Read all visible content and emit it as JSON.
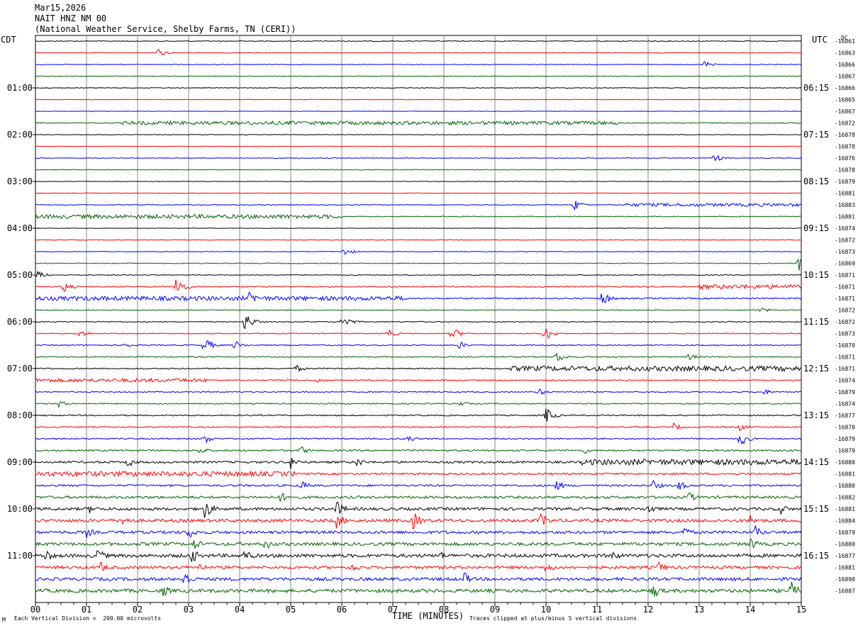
{
  "header": {
    "date": "Mar15,2026",
    "station": "NAIT HNZ NM 00",
    "agency": "(National Weather Service, Shelby Farms, TN (CERI))"
  },
  "axis": {
    "left_zone": "CDT",
    "right_zone": "UTC",
    "dc_label": "DC",
    "xlabel": "TIME (MINUTES)",
    "left_note": "Each Vertical Division =  200.00 microvolts",
    "right_note": "Traces clipped at plus/minus 5 vertical divisions",
    "corner_mark": "M"
  },
  "chart_data": {
    "type": "line",
    "title": "NAIT HNZ NM 00",
    "xlabel": "TIME (MINUTES)",
    "xlim": [
      0,
      15
    ],
    "x_ticks": [
      "00",
      "01",
      "02",
      "03",
      "04",
      "05",
      "06",
      "07",
      "08",
      "09",
      "10",
      "11",
      "12",
      "13",
      "14",
      "15"
    ],
    "grid": true,
    "trace_colors": [
      "#000000",
      "#ff0000",
      "#0000ff",
      "#006400"
    ],
    "left_times": [
      "01:00",
      "02:00",
      "03:00",
      "04:00",
      "05:00",
      "06:00",
      "07:00",
      "08:00",
      "09:00",
      "10:00",
      "11:00"
    ],
    "right_times": [
      "06:15",
      "07:15",
      "08:15",
      "09:15",
      "10:15",
      "11:15",
      "12:15",
      "13:15",
      "14:15",
      "15:15",
      "16:15"
    ],
    "dc_offsets": [
      "-16861",
      "-16863",
      "-16866",
      "-16867",
      "-16866",
      "-16865",
      "-16867",
      "-16872",
      "-16878",
      "-16878",
      "-16876",
      "-16878",
      "-16879",
      "-16881",
      "-16883",
      "-16881",
      "-16874",
      "-16872",
      "-16873",
      "-16869",
      "-16871",
      "-16871",
      "-16871",
      "-16872",
      "-16872",
      "-16873",
      "-16870",
      "-16871",
      "-16871",
      "-16874",
      "-16879",
      "-16874",
      "-16877",
      "-16878",
      "-16879",
      "-16879",
      "-16880",
      "-16881",
      "-16880",
      "-16882",
      "-16881",
      "-16884",
      "-16879",
      "-16880",
      "-16877",
      "-16881",
      "-16890",
      "-16887"
    ],
    "base_noise": [
      0.6,
      0.5,
      0.5,
      0.5,
      0.5,
      0.4,
      0.4,
      0.7,
      0.4,
      0.4,
      0.5,
      0.5,
      0.4,
      0.4,
      0.6,
      0.6,
      0.4,
      0.5,
      0.5,
      0.6,
      0.6,
      0.9,
      1.0,
      0.6,
      0.7,
      0.7,
      0.8,
      0.8,
      0.9,
      0.9,
      0.8,
      0.8,
      0.9,
      0.9,
      1.0,
      1.2,
      1.5,
      1.3,
      1.4,
      1.8,
      2.0,
      2.2,
      2.0,
      2.2,
      2.4,
      2.0,
      2.2,
      2.4
    ],
    "noisy_spans": [
      {
        "row": 7,
        "x0": 1.7,
        "x1": 11.4,
        "amp": 2.5
      },
      {
        "row": 14,
        "x0": 11.5,
        "x1": 15,
        "amp": 2.2
      },
      {
        "row": 15,
        "x0": 0,
        "x1": 6.0,
        "amp": 2.8
      },
      {
        "row": 21,
        "x0": 13.0,
        "x1": 15,
        "amp": 3.0
      },
      {
        "row": 22,
        "x0": 0,
        "x1": 7.3,
        "amp": 3.0
      },
      {
        "row": 28,
        "x0": 9.3,
        "x1": 15,
        "amp": 3.5
      },
      {
        "row": 29,
        "x0": 0,
        "x1": 3.4,
        "amp": 2.5
      },
      {
        "row": 36,
        "x0": 10.7,
        "x1": 15,
        "amp": 4.0
      },
      {
        "row": 37,
        "x0": 0,
        "x1": 5.1,
        "amp": 3.5
      }
    ],
    "events": [
      {
        "row": 1,
        "x": 2.4,
        "amp": 6
      },
      {
        "row": 2,
        "x": 13.1,
        "amp": 5
      },
      {
        "row": 10,
        "x": 13.3,
        "amp": 7
      },
      {
        "row": 14,
        "x": 10.55,
        "amp": 9
      },
      {
        "row": 18,
        "x": 6.05,
        "amp": 7
      },
      {
        "row": 19,
        "x": 14.95,
        "amp": 12
      },
      {
        "row": 20,
        "x": 0.05,
        "amp": 6
      },
      {
        "row": 21,
        "x": 0.55,
        "amp": 8
      },
      {
        "row": 21,
        "x": 2.75,
        "amp": 16
      },
      {
        "row": 22,
        "x": 4.2,
        "amp": 12
      },
      {
        "row": 22,
        "x": 11.1,
        "amp": 12
      },
      {
        "row": 23,
        "x": 14.2,
        "amp": 5
      },
      {
        "row": 24,
        "x": 4.1,
        "amp": 14
      },
      {
        "row": 24,
        "x": 6.0,
        "amp": 12
      },
      {
        "row": 25,
        "x": 0.85,
        "amp": 7
      },
      {
        "row": 25,
        "x": 6.9,
        "amp": 7
      },
      {
        "row": 25,
        "x": 8.15,
        "amp": 10
      },
      {
        "row": 25,
        "x": 9.95,
        "amp": 14
      },
      {
        "row": 26,
        "x": 1.7,
        "amp": 6
      },
      {
        "row": 26,
        "x": 3.3,
        "amp": 12
      },
      {
        "row": 26,
        "x": 3.9,
        "amp": 7
      },
      {
        "row": 26,
        "x": 8.3,
        "amp": 6
      },
      {
        "row": 27,
        "x": 10.2,
        "amp": 9
      },
      {
        "row": 27,
        "x": 12.8,
        "amp": 5
      },
      {
        "row": 28,
        "x": 5.1,
        "amp": 6
      },
      {
        "row": 29,
        "x": 5.5,
        "amp": 5
      },
      {
        "row": 30,
        "x": 9.85,
        "amp": 6
      },
      {
        "row": 30,
        "x": 14.25,
        "amp": 5
      },
      {
        "row": 31,
        "x": 0.45,
        "amp": 6
      },
      {
        "row": 31,
        "x": 8.3,
        "amp": 5
      },
      {
        "row": 32,
        "x": 10.0,
        "amp": 12
      },
      {
        "row": 33,
        "x": 12.5,
        "amp": 6
      },
      {
        "row": 33,
        "x": 13.8,
        "amp": 6
      },
      {
        "row": 34,
        "x": 3.3,
        "amp": 8
      },
      {
        "row": 34,
        "x": 7.3,
        "amp": 6
      },
      {
        "row": 34,
        "x": 13.8,
        "amp": 12
      },
      {
        "row": 35,
        "x": 3.2,
        "amp": 7
      },
      {
        "row": 35,
        "x": 5.2,
        "amp": 7
      },
      {
        "row": 35,
        "x": 10.75,
        "amp": 5
      },
      {
        "row": 36,
        "x": 1.8,
        "amp": 8
      },
      {
        "row": 36,
        "x": 5.0,
        "amp": 10
      },
      {
        "row": 36,
        "x": 6.3,
        "amp": 7
      },
      {
        "row": 38,
        "x": 5.2,
        "amp": 8
      },
      {
        "row": 38,
        "x": 10.2,
        "amp": 8
      },
      {
        "row": 38,
        "x": 12.1,
        "amp": 8
      },
      {
        "row": 38,
        "x": 12.6,
        "amp": 8
      },
      {
        "row": 39,
        "x": 4.8,
        "amp": 8
      },
      {
        "row": 39,
        "x": 12.8,
        "amp": 8
      },
      {
        "row": 40,
        "x": 1.05,
        "amp": 7
      },
      {
        "row": 40,
        "x": 3.3,
        "amp": 16
      },
      {
        "row": 40,
        "x": 5.9,
        "amp": 12
      },
      {
        "row": 40,
        "x": 12.0,
        "amp": 9
      },
      {
        "row": 40,
        "x": 14.6,
        "amp": 8
      },
      {
        "row": 41,
        "x": 1.7,
        "amp": 10
      },
      {
        "row": 41,
        "x": 5.9,
        "amp": 12
      },
      {
        "row": 41,
        "x": 7.4,
        "amp": 14
      },
      {
        "row": 41,
        "x": 9.9,
        "amp": 12
      },
      {
        "row": 41,
        "x": 14.0,
        "amp": 9
      },
      {
        "row": 42,
        "x": 1.0,
        "amp": 8
      },
      {
        "row": 42,
        "x": 3.0,
        "amp": 10
      },
      {
        "row": 42,
        "x": 12.7,
        "amp": 9
      },
      {
        "row": 42,
        "x": 14.1,
        "amp": 10
      },
      {
        "row": 43,
        "x": 3.1,
        "amp": 9
      },
      {
        "row": 43,
        "x": 4.5,
        "amp": 9
      },
      {
        "row": 43,
        "x": 14.0,
        "amp": 10
      },
      {
        "row": 44,
        "x": 0.2,
        "amp": 10
      },
      {
        "row": 44,
        "x": 1.2,
        "amp": 12
      },
      {
        "row": 44,
        "x": 3.05,
        "amp": 12
      },
      {
        "row": 44,
        "x": 4.1,
        "amp": 10
      },
      {
        "row": 44,
        "x": 7.9,
        "amp": 8
      },
      {
        "row": 44,
        "x": 11.3,
        "amp": 8
      },
      {
        "row": 45,
        "x": 1.25,
        "amp": 10
      },
      {
        "row": 45,
        "x": 3.2,
        "amp": 7
      },
      {
        "row": 45,
        "x": 6.2,
        "amp": 9
      },
      {
        "row": 45,
        "x": 10.0,
        "amp": 9
      },
      {
        "row": 45,
        "x": 12.2,
        "amp": 9
      },
      {
        "row": 46,
        "x": 2.9,
        "amp": 14
      },
      {
        "row": 46,
        "x": 8.4,
        "amp": 10
      },
      {
        "row": 47,
        "x": 2.5,
        "amp": 9
      },
      {
        "row": 47,
        "x": 12.1,
        "amp": 12
      },
      {
        "row": 47,
        "x": 14.8,
        "amp": 14
      }
    ]
  }
}
